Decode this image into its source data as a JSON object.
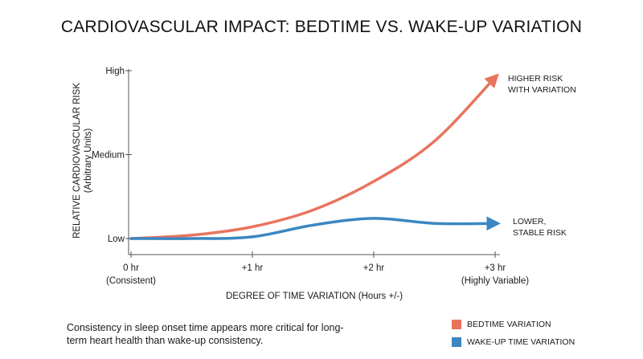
{
  "chart_data": {
    "type": "line",
    "title": "CARDIOVASCULAR IMPACT: BEDTIME VS. WAKE-UP VARIATION",
    "xlabel": "DEGREE OF TIME VARIATION (Hours +/-)",
    "ylabel": "RELATIVE CARDIOVASCULAR RISK",
    "ylabel_sub": "(Arbitrary Units)",
    "x_ticks": [
      {
        "value": 0,
        "label": "0 hr",
        "sublabel": "(Consistent)"
      },
      {
        "value": 1,
        "label": "+1 hr",
        "sublabel": ""
      },
      {
        "value": 2,
        "label": "+2 hr",
        "sublabel": ""
      },
      {
        "value": 3,
        "label": "+3 hr",
        "sublabel": "(Highly Variable)"
      }
    ],
    "y_ticks": [
      {
        "value": 0,
        "label": "Low"
      },
      {
        "value": 0.5,
        "label": "Medium"
      },
      {
        "value": 1,
        "label": "High"
      }
    ],
    "xlim": [
      0,
      3
    ],
    "ylim": [
      0,
      1
    ],
    "series": [
      {
        "name": "BEDTIME VARIATION",
        "color": "#e8745e",
        "x": [
          0,
          0.5,
          1,
          1.5,
          2,
          2.5,
          3
        ],
        "y": [
          0,
          0.02,
          0.07,
          0.17,
          0.34,
          0.58,
          0.96
        ],
        "annotation": [
          "HIGHER RISK",
          "WITH VARIATION"
        ]
      },
      {
        "name": "WAKE-UP TIME VARIATION",
        "color": "#3a87c2",
        "x": [
          0,
          0.5,
          1,
          1.5,
          2,
          2.5,
          3
        ],
        "y": [
          0,
          0,
          0.01,
          0.08,
          0.12,
          0.09,
          0.09
        ],
        "annotation": [
          "LOWER,",
          "STABLE RISK"
        ]
      }
    ],
    "grid": false,
    "legend_position": "bottom-right"
  },
  "footnote": "Consistency in sleep onset time appears more critical for long-term heart health than wake-up consistency."
}
